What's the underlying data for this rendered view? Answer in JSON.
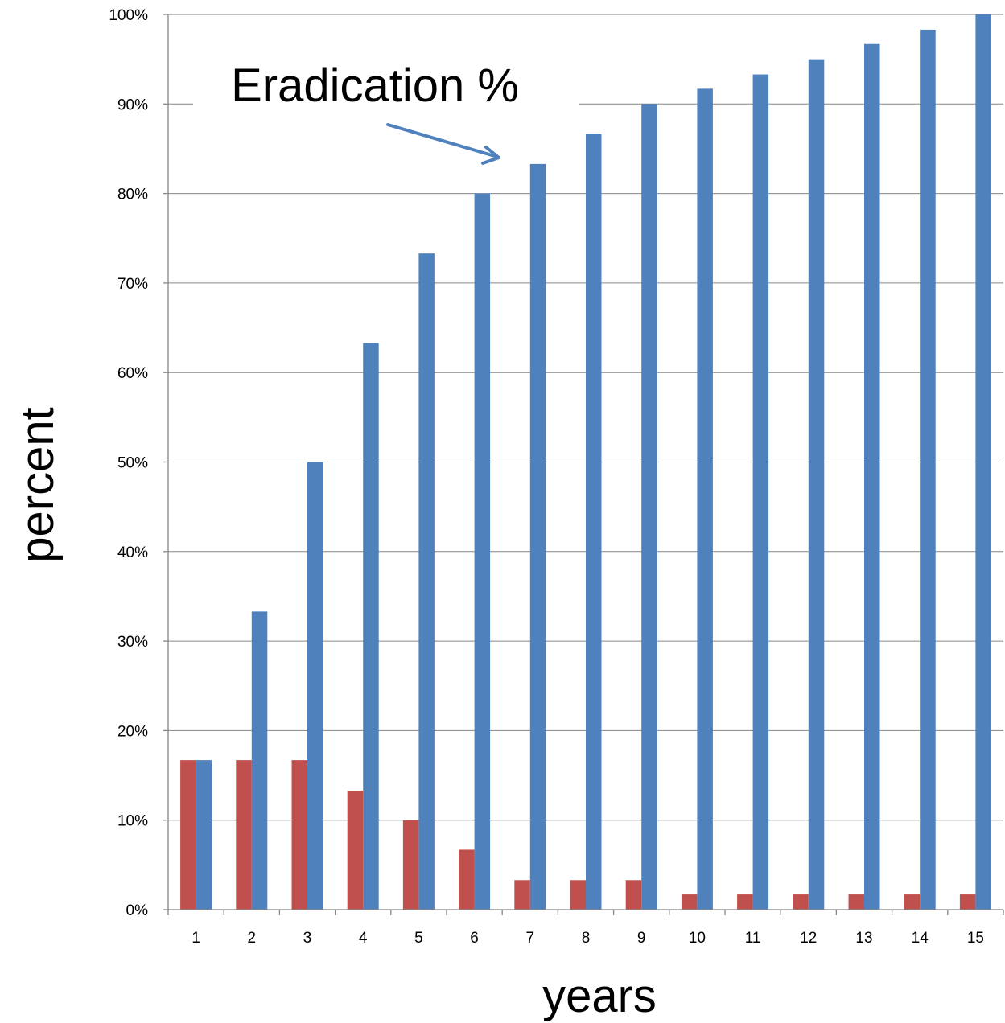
{
  "chart_data": {
    "type": "bar",
    "categories": [
      "1",
      "2",
      "3",
      "4",
      "5",
      "6",
      "7",
      "8",
      "9",
      "10",
      "11",
      "12",
      "13",
      "14",
      "15"
    ],
    "series": [
      {
        "color": "#c0504d",
        "values": [
          16.7,
          16.7,
          16.7,
          13.3,
          10.0,
          6.7,
          3.3,
          3.3,
          3.3,
          1.7,
          1.7,
          1.7,
          1.7,
          1.7,
          1.7
        ]
      },
      {
        "color": "#4f81bd",
        "values": [
          16.7,
          33.3,
          50.0,
          63.3,
          73.3,
          80.0,
          83.3,
          86.7,
          90.0,
          91.7,
          93.3,
          95.0,
          96.7,
          98.3,
          100.0
        ]
      }
    ],
    "xlabel": "years",
    "ylabel": "percent",
    "ylim": [
      0,
      100
    ],
    "yticks": [
      "0%",
      "10%",
      "20%",
      "30%",
      "40%",
      "50%",
      "60%",
      "70%",
      "80%",
      "90%",
      "100%"
    ],
    "grid": true,
    "legend": "none",
    "annotation": {
      "text": "Eradication %",
      "points_to_series": 1,
      "arrow_color": "#4f81bd"
    }
  }
}
